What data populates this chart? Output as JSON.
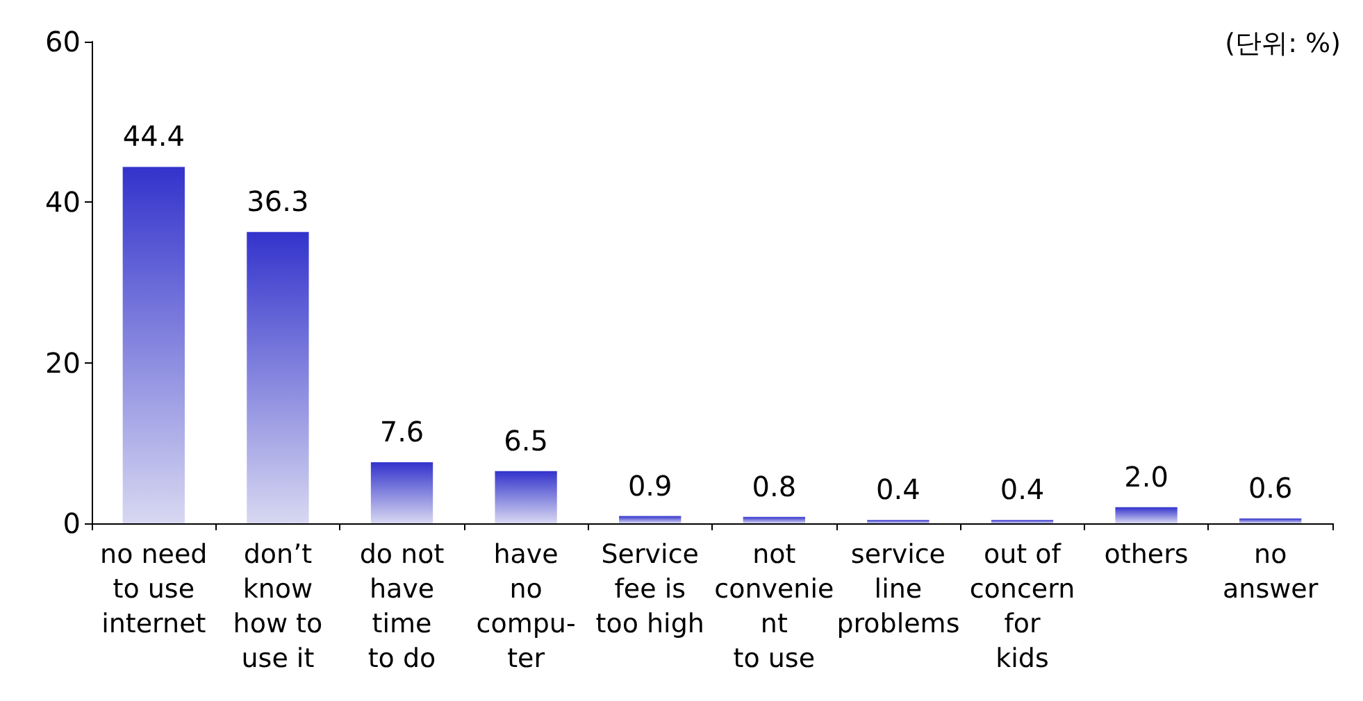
{
  "chart_data": {
    "type": "bar",
    "categories": [
      "no need\nto use\ninternet",
      "don’t\nknow\nhow to\nuse it",
      "do not\nhave\ntime\nto do",
      "have\nno\ncompu-\nter",
      "Service\nfee is\ntoo high",
      "not\nconvenie\nnt\nto use",
      "service\nline\nproblems",
      "out of\nconcern\nfor\nkids",
      "others",
      "no\nanswer"
    ],
    "values": [
      44.4,
      36.3,
      7.6,
      6.5,
      0.9,
      0.8,
      0.4,
      0.4,
      2.0,
      0.6
    ],
    "color": "#3333cc",
    "ylim": [
      0,
      60
    ],
    "yticks": [
      0,
      20,
      40,
      60
    ],
    "grid": false,
    "value_labels": [
      "44.4",
      "36.3",
      "7.6",
      "6.5",
      "0.9",
      "0.8",
      "0.4",
      "0.4",
      "2.0",
      "0.6"
    ],
    "annotations": [
      "(단위: %)"
    ]
  }
}
